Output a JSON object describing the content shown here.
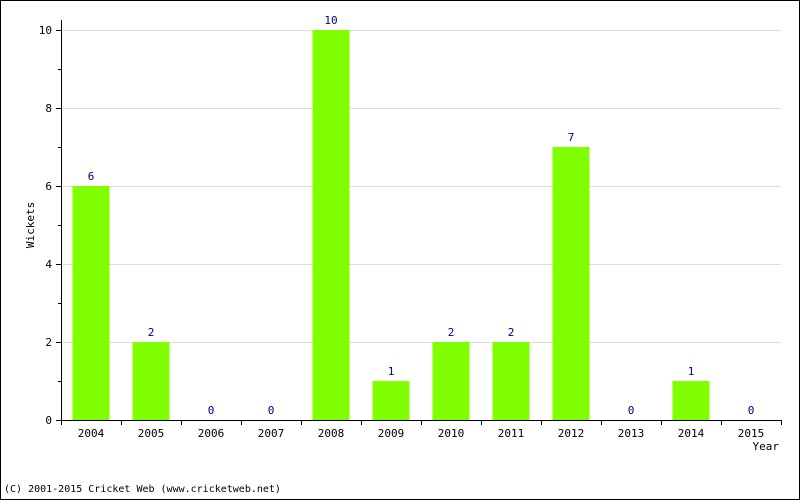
{
  "chart_data": {
    "type": "bar",
    "title": "",
    "xlabel": "Year",
    "ylabel": "Wickets",
    "categories": [
      "2004",
      "2005",
      "2006",
      "2007",
      "2008",
      "2009",
      "2010",
      "2011",
      "2012",
      "2013",
      "2014",
      "2015"
    ],
    "values": [
      6,
      2,
      0,
      0,
      10,
      1,
      2,
      2,
      7,
      0,
      1,
      0
    ],
    "ylim": [
      0,
      10
    ],
    "yticks": [
      0,
      2,
      4,
      6,
      8,
      10
    ],
    "grid": true,
    "data_labels": true,
    "bar_color": "#80ff00",
    "label_color": "#000080"
  },
  "footer": {
    "copyright": "(C) 2001-2015 Cricket Web (www.cricketweb.net)"
  }
}
